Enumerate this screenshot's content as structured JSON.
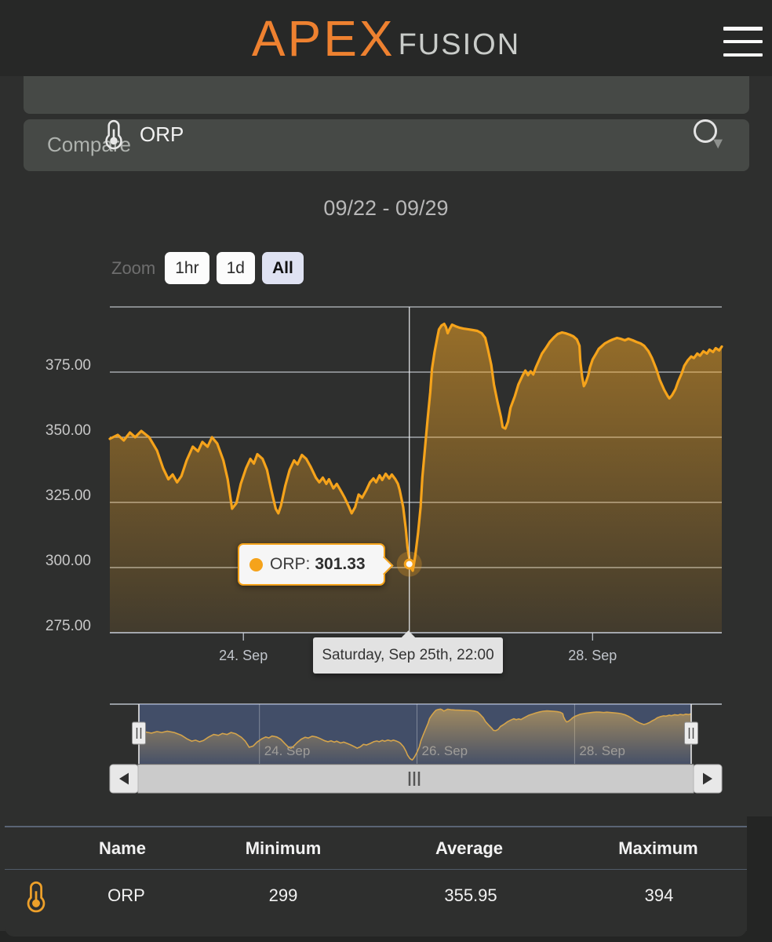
{
  "header": {
    "logo_primary": "APEX",
    "logo_secondary": "FUSION"
  },
  "probe_selector": {
    "name": "ORP"
  },
  "compare": {
    "label": "Compare",
    "caret": "▼"
  },
  "chart_data": {
    "type": "area",
    "title": "09/22 - 09/29",
    "zoom_label": "Zoom",
    "zoom_buttons": [
      {
        "label": "1hr",
        "active": false
      },
      {
        "label": "1d",
        "active": false
      },
      {
        "label": "All",
        "active": true
      }
    ],
    "xlim": [
      22.47,
      29.48
    ],
    "ylim": [
      275,
      400
    ],
    "grid_values": [
      400,
      375,
      350,
      325,
      300
    ],
    "yticks": [
      {
        "value": 375,
        "label": "375.00"
      },
      {
        "value": 350,
        "label": "350.00"
      },
      {
        "value": 325,
        "label": "325.00"
      },
      {
        "value": 300,
        "label": "300.00"
      },
      {
        "value": 275,
        "label": "275.00"
      }
    ],
    "xticks": [
      {
        "day": 24,
        "label": "24. Sep"
      },
      {
        "day": 28,
        "label": "28. Sep"
      }
    ],
    "series": [
      {
        "name": "ORP",
        "color": "#f5a31b",
        "points": [
          [
            22.47,
            349.4
          ],
          [
            22.56,
            350.9
          ],
          [
            22.63,
            348.8
          ],
          [
            22.7,
            351.8
          ],
          [
            22.76,
            350
          ],
          [
            22.83,
            352.4
          ],
          [
            22.92,
            350
          ],
          [
            23.01,
            344.9
          ],
          [
            23.08,
            338.1
          ],
          [
            23.14,
            333.9
          ],
          [
            23.19,
            335.7
          ],
          [
            23.24,
            332.7
          ],
          [
            23.29,
            335.1
          ],
          [
            23.35,
            341.1
          ],
          [
            23.42,
            346.4
          ],
          [
            23.48,
            344.6
          ],
          [
            23.53,
            348.2
          ],
          [
            23.59,
            346.4
          ],
          [
            23.64,
            350
          ],
          [
            23.7,
            347.6
          ],
          [
            23.77,
            341.1
          ],
          [
            23.82,
            333.9
          ],
          [
            23.87,
            322.6
          ],
          [
            23.92,
            324.7
          ],
          [
            23.97,
            332.1
          ],
          [
            24.03,
            338.1
          ],
          [
            24.08,
            341.7
          ],
          [
            24.12,
            339.9
          ],
          [
            24.16,
            343.5
          ],
          [
            24.22,
            341.7
          ],
          [
            24.27,
            337.5
          ],
          [
            24.32,
            329.8
          ],
          [
            24.37,
            322.6
          ],
          [
            24.4,
            320.8
          ],
          [
            24.43,
            323.8
          ],
          [
            24.48,
            331.5
          ],
          [
            24.53,
            337.5
          ],
          [
            24.58,
            341.1
          ],
          [
            24.62,
            339.6
          ],
          [
            24.67,
            343.2
          ],
          [
            24.72,
            341.7
          ],
          [
            24.77,
            338.7
          ],
          [
            24.83,
            334.5
          ],
          [
            24.87,
            332.7
          ],
          [
            24.91,
            334.5
          ],
          [
            24.95,
            332.1
          ],
          [
            24.98,
            333.9
          ],
          [
            25.03,
            330.4
          ],
          [
            25.07,
            332.1
          ],
          [
            25.12,
            329.2
          ],
          [
            25.16,
            326.8
          ],
          [
            25.21,
            323.2
          ],
          [
            25.24,
            320.8
          ],
          [
            25.28,
            323.2
          ],
          [
            25.32,
            328
          ],
          [
            25.36,
            326.8
          ],
          [
            25.41,
            329.8
          ],
          [
            25.45,
            332.7
          ],
          [
            25.49,
            334.2
          ],
          [
            25.52,
            332.7
          ],
          [
            25.56,
            335.4
          ],
          [
            25.59,
            333.6
          ],
          [
            25.63,
            336
          ],
          [
            25.67,
            334.2
          ],
          [
            25.7,
            335.7
          ],
          [
            25.74,
            333.9
          ],
          [
            25.77,
            332.1
          ],
          [
            25.79,
            329.8
          ],
          [
            25.83,
            323.2
          ],
          [
            25.86,
            314.9
          ],
          [
            25.88,
            307.7
          ],
          [
            25.91,
            301.5
          ],
          [
            25.93,
            299.4
          ],
          [
            25.94,
            298.8
          ],
          [
            25.95,
            300.6
          ],
          [
            25.97,
            304.8
          ],
          [
            26,
            313.1
          ],
          [
            26.03,
            323.2
          ],
          [
            26.05,
            334.5
          ],
          [
            26.08,
            345.8
          ],
          [
            26.11,
            356.8
          ],
          [
            26.14,
            367.3
          ],
          [
            26.16,
            376.2
          ],
          [
            26.19,
            382.7
          ],
          [
            26.22,
            388.1
          ],
          [
            26.24,
            391.4
          ],
          [
            26.27,
            392.9
          ],
          [
            26.3,
            393.5
          ],
          [
            26.32,
            392.3
          ],
          [
            26.34,
            389.9
          ],
          [
            26.36,
            391.4
          ],
          [
            26.39,
            393.2
          ],
          [
            26.43,
            392.6
          ],
          [
            26.48,
            392
          ],
          [
            26.52,
            391.7
          ],
          [
            26.58,
            391.4
          ],
          [
            26.63,
            391.1
          ],
          [
            26.68,
            390.8
          ],
          [
            26.73,
            389.9
          ],
          [
            26.77,
            388.1
          ],
          [
            26.8,
            383.9
          ],
          [
            26.84,
            377.7
          ],
          [
            26.87,
            370.2
          ],
          [
            26.91,
            363.7
          ],
          [
            26.95,
            357.7
          ],
          [
            26.97,
            353.9
          ],
          [
            27,
            353.3
          ],
          [
            27.03,
            355.9
          ],
          [
            27.06,
            361.3
          ],
          [
            27.11,
            365.8
          ],
          [
            27.15,
            370.2
          ],
          [
            27.2,
            373.8
          ],
          [
            27.23,
            375.6
          ],
          [
            27.26,
            373.8
          ],
          [
            27.29,
            375.3
          ],
          [
            27.32,
            374.1
          ],
          [
            27.35,
            376.8
          ],
          [
            27.39,
            379.8
          ],
          [
            27.42,
            382.1
          ],
          [
            27.47,
            384.5
          ],
          [
            27.51,
            386.6
          ],
          [
            27.56,
            388.4
          ],
          [
            27.6,
            389.6
          ],
          [
            27.65,
            390.2
          ],
          [
            27.69,
            389.9
          ],
          [
            27.74,
            389.3
          ],
          [
            27.78,
            388.7
          ],
          [
            27.82,
            387.5
          ],
          [
            27.85,
            385.1
          ],
          [
            27.86,
            379.2
          ],
          [
            27.88,
            373.2
          ],
          [
            27.9,
            369.6
          ],
          [
            27.92,
            370.8
          ],
          [
            27.95,
            373.8
          ],
          [
            27.97,
            376.8
          ],
          [
            28,
            379.8
          ],
          [
            28.04,
            382.1
          ],
          [
            28.07,
            383.9
          ],
          [
            28.11,
            385.1
          ],
          [
            28.14,
            386
          ],
          [
            28.19,
            386.9
          ],
          [
            28.23,
            387.5
          ],
          [
            28.28,
            388.1
          ],
          [
            28.32,
            387.8
          ],
          [
            28.37,
            387.2
          ],
          [
            28.41,
            387.8
          ],
          [
            28.46,
            387.2
          ],
          [
            28.5,
            386.6
          ],
          [
            28.55,
            386
          ],
          [
            28.59,
            385.1
          ],
          [
            28.64,
            383
          ],
          [
            28.68,
            380.4
          ],
          [
            28.73,
            376.2
          ],
          [
            28.77,
            372
          ],
          [
            28.82,
            368.2
          ],
          [
            28.86,
            365.8
          ],
          [
            28.88,
            364.9
          ],
          [
            28.91,
            366.1
          ],
          [
            28.95,
            368.5
          ],
          [
            28.98,
            371.4
          ],
          [
            29.02,
            374.4
          ],
          [
            29.05,
            377.4
          ],
          [
            29.09,
            379.5
          ],
          [
            29.13,
            381
          ],
          [
            29.16,
            380.4
          ],
          [
            29.2,
            382.1
          ],
          [
            29.23,
            381.3
          ],
          [
            29.27,
            383
          ],
          [
            29.31,
            382.1
          ],
          [
            29.34,
            383.6
          ],
          [
            29.38,
            382.7
          ],
          [
            29.41,
            384.2
          ],
          [
            29.45,
            383.3
          ],
          [
            29.48,
            384.8
          ]
        ]
      }
    ],
    "tooltip": {
      "series_label": "ORP:",
      "value_text": "301.33",
      "value": 301.33,
      "day": 25.9
    },
    "date_tooltip": "Saturday, Sep 25th, 22:00",
    "navigator": {
      "xticks": [
        {
          "day": 24,
          "label": "24. Sep"
        },
        {
          "day": 26,
          "label": "26. Sep"
        },
        {
          "day": 28,
          "label": "28. Sep"
        }
      ]
    },
    "colors": {
      "accent_orange": "#f5a31b",
      "logo_orange": "#ee8130",
      "navigator_mask": "rgba(100,130,200,0.38)",
      "navigator_line": "#d4a44c"
    }
  },
  "stats_table": {
    "headers": [
      "Name",
      "Minimum",
      "Average",
      "Maximum"
    ],
    "rows": [
      {
        "icon": "thermometer-icon",
        "name": "ORP",
        "minimum": "299",
        "average": "355.95",
        "maximum": "394"
      }
    ]
  }
}
